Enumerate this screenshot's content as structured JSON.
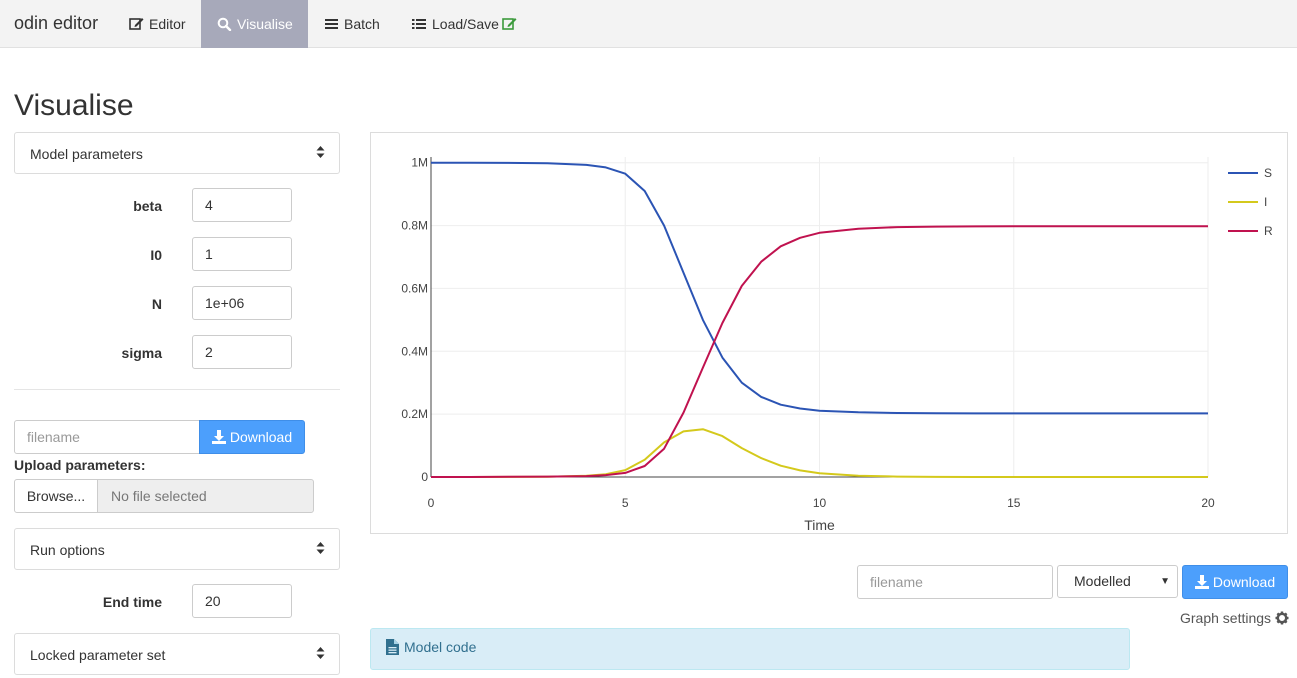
{
  "navbar": {
    "brand": "odin editor",
    "tabs": [
      {
        "label": "Editor",
        "icon": "edit-icon"
      },
      {
        "label": "Visualise",
        "icon": "search-icon",
        "active": true
      },
      {
        "label": "Batch",
        "icon": "bars-icon"
      },
      {
        "label": "Load/Save",
        "icon": "list-icon"
      }
    ]
  },
  "page": {
    "title": "Visualise"
  },
  "model_parameters": {
    "header": "Model parameters",
    "params": [
      {
        "label": "beta",
        "value": "4"
      },
      {
        "label": "I0",
        "value": "1"
      },
      {
        "label": "N",
        "value": "1e+06"
      },
      {
        "label": "sigma",
        "value": "2"
      }
    ],
    "filename_placeholder": "filename",
    "download_label": "Download",
    "upload_label": "Upload parameters:",
    "browse_label": "Browse...",
    "no_file_label": "No file selected"
  },
  "run_options": {
    "header": "Run options",
    "end_time_label": "End time",
    "end_time_value": "20"
  },
  "locked_parameter_set": {
    "header": "Locked parameter set"
  },
  "chart_data": {
    "type": "line",
    "xlabel": "Time",
    "ylabel": "",
    "xlim": [
      0,
      20
    ],
    "ylim": [
      0,
      1050000
    ],
    "x_ticks": [
      "0",
      "5",
      "10",
      "15",
      "20"
    ],
    "y_ticks": [
      "0",
      "0.2M",
      "0.4M",
      "0.6M",
      "0.8M",
      "1M"
    ],
    "grid": true,
    "legend_position": "top-right",
    "x": [
      0,
      1,
      2,
      3,
      4,
      4.5,
      5,
      5.5,
      6,
      6.5,
      7,
      7.5,
      8,
      8.5,
      9,
      9.5,
      10,
      11,
      12,
      13,
      14,
      15,
      16,
      17,
      18,
      19,
      20
    ],
    "series": [
      {
        "name": "S",
        "color": "#2b54b4",
        "values": [
          1000000,
          999800,
          999300,
          998000,
          993000,
          985000,
          965000,
          910000,
          800000,
          650000,
          500000,
          380000,
          300000,
          255000,
          230000,
          218000,
          211000,
          206000,
          203500,
          202800,
          202500,
          202400,
          202300,
          202300,
          202300,
          202300,
          202300
        ]
      },
      {
        "name": "I",
        "color": "#d4c91c",
        "values": [
          0,
          50,
          200,
          800,
          4000,
          9000,
          22000,
          55000,
          110000,
          145000,
          152000,
          130000,
          92000,
          60000,
          36000,
          21000,
          12000,
          4000,
          1300,
          400,
          130,
          40,
          10,
          0,
          0,
          0,
          0
        ]
      },
      {
        "name": "R",
        "color": "#c0124f",
        "values": [
          0,
          150,
          500,
          1200,
          3000,
          6000,
          13000,
          35000,
          90000,
          205000,
          348000,
          490000,
          608000,
          685000,
          734000,
          761000,
          777000,
          790000,
          795200,
          796800,
          797400,
          797600,
          797700,
          797700,
          797700,
          797700,
          797700
        ]
      }
    ]
  },
  "chart_controls": {
    "filename_placeholder": "filename",
    "select_value": "Modelled",
    "download_label": "Download",
    "graph_settings_label": "Graph settings"
  },
  "model_code": {
    "label": "Model code"
  }
}
